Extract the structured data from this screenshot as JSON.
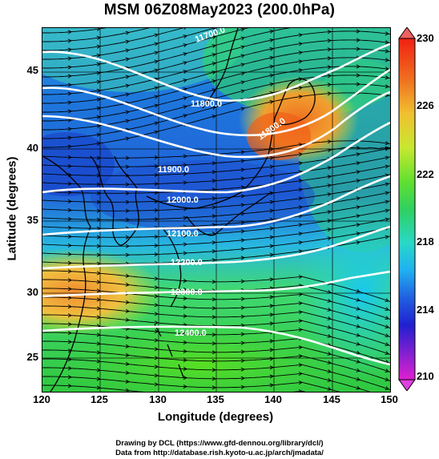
{
  "title": "MSM 06Z08May2023 (200.0hPa)",
  "axes": {
    "xlabel": "Longitude (degrees)",
    "ylabel": "Latitude  (degrees)",
    "xticks": [
      "120",
      "125",
      "130",
      "135",
      "140",
      "145",
      "150"
    ],
    "yticks": [
      "45",
      "40",
      "35",
      "30",
      "25"
    ]
  },
  "colorbar": {
    "min": 210,
    "max": 230,
    "labels": [
      "230",
      "226",
      "222",
      "218",
      "214",
      "210"
    ]
  },
  "contours": [
    {
      "label": "11700.0"
    },
    {
      "label": "11800.0"
    },
    {
      "label": "11900.0"
    },
    {
      "label": "12000.0"
    },
    {
      "label": "12100.0"
    },
    {
      "label": "12200.0"
    },
    {
      "label": "12300.0"
    },
    {
      "label": "12400.0"
    }
  ],
  "credits": {
    "line1": "Drawing by DCL (https://www.gfd-dennou.org/library/dcl/)",
    "line2": "Data from http://database.rish.kyoto-u.ac.jp/arch/jmadata/"
  },
  "chart_data": {
    "type": "heatmap",
    "title": "MSM 06Z08May2023 (200.0hPa)",
    "xlabel": "Longitude (degrees)",
    "ylabel": "Latitude  (degrees)",
    "xlim": [
      120,
      150
    ],
    "ylim": [
      22.4,
      47.6
    ],
    "colorbar_range": [
      210,
      230
    ],
    "contour_levels": [
      11700,
      11800,
      11900,
      12000,
      12100,
      12200,
      12300,
      12400
    ],
    "vector_field": "wind streamlines with arrows, predominantly westerly"
  }
}
